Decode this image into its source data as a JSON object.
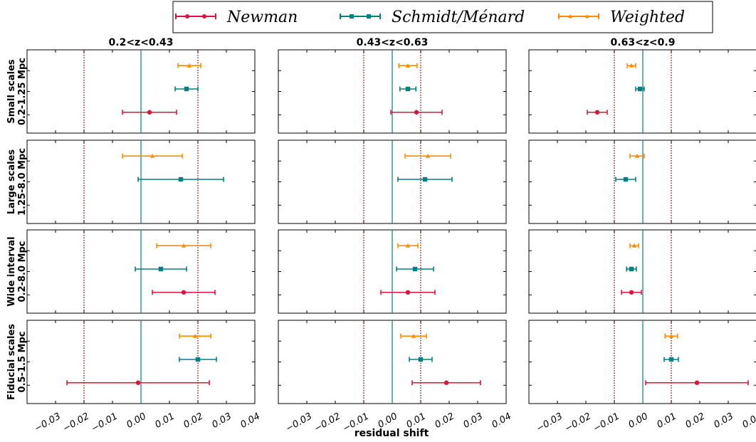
{
  "legend": {
    "entries": [
      {
        "label": "Newman",
        "color": "#dc143c",
        "marker": "circle"
      },
      {
        "label": "Schmidt/Ménard",
        "color": "#008080",
        "marker": "square"
      },
      {
        "label": "Weighted",
        "color": "#ff8c00",
        "marker": "triangle"
      }
    ]
  },
  "xlabel": "residual shift",
  "x_ticks": [
    "−0.03",
    "−0.02",
    "−0.01",
    "0.00",
    "0.01",
    "0.02",
    "0.03",
    "0.04"
  ],
  "chart_data": {
    "type": "scatter",
    "subtype": "errorbar-grid",
    "xlabel": "residual shift",
    "xlim": [
      -0.04,
      0.04
    ],
    "x_tick_values": [
      -0.03,
      -0.02,
      -0.01,
      0.0,
      0.01,
      0.02,
      0.03,
      0.04
    ],
    "columns": [
      {
        "title": "0.2<z<0.43",
        "reference_x": 0.0,
        "dotted_x": [
          -0.02,
          0.02
        ]
      },
      {
        "title": "0.43<z<0.63",
        "reference_x": 0.0,
        "dotted_x": [
          -0.01,
          0.01
        ]
      },
      {
        "title": "0.63<z<0.9",
        "reference_x": 0.0,
        "dotted_x": [
          -0.01,
          0.01
        ]
      }
    ],
    "rows": [
      {
        "label_line1": "Small scales",
        "label_line2": "0.2-1.25 Mpc"
      },
      {
        "label_line1": "Large scales",
        "label_line2": "1.25-8.0 Mpc"
      },
      {
        "label_line1": "Wide interval",
        "label_line2": "0.2-8.0 Mpc"
      },
      {
        "label_line1": "Fiducial scales",
        "label_line2": "0.5-1.5 Mpc"
      }
    ],
    "series_names": [
      "Newman",
      "Schmidt/Ménard",
      "Weighted"
    ],
    "series_colors": [
      "#dc143c",
      "#008080",
      "#ff8c00"
    ],
    "points": [
      [
        [
          [
            0.003,
            0.0095
          ],
          [
            0.016,
            0.004
          ],
          [
            0.017,
            0.004
          ]
        ],
        [
          null,
          [
            0.014,
            0.015
          ],
          [
            0.004,
            0.0105
          ]
        ],
        [
          [
            0.015,
            0.011
          ],
          [
            0.007,
            0.009
          ],
          [
            0.015,
            0.0095
          ]
        ],
        [
          [
            -0.001,
            0.025
          ],
          [
            0.02,
            0.0065
          ],
          [
            0.019,
            0.0055
          ]
        ]
      ],
      [
        [
          [
            0.0085,
            0.009
          ],
          [
            0.0055,
            0.0028
          ],
          [
            0.0055,
            0.0032
          ]
        ],
        [
          null,
          [
            0.0115,
            0.0095
          ],
          [
            0.0125,
            0.008
          ]
        ],
        [
          [
            0.0055,
            0.0095
          ],
          [
            0.008,
            0.0065
          ],
          [
            0.0055,
            0.0035
          ]
        ],
        [
          [
            0.019,
            0.012
          ],
          [
            0.01,
            0.004
          ],
          [
            0.0075,
            0.0045
          ]
        ]
      ],
      [
        [
          [
            -0.016,
            0.0035
          ],
          [
            -0.001,
            0.0015
          ],
          [
            -0.004,
            0.0015
          ]
        ],
        [
          null,
          [
            -0.006,
            0.0035
          ],
          [
            -0.002,
            0.0025
          ]
        ],
        [
          [
            -0.004,
            0.0035
          ],
          [
            -0.004,
            0.0017
          ],
          [
            -0.003,
            0.0015
          ]
        ],
        [
          [
            0.019,
            0.018
          ],
          [
            0.01,
            0.0025
          ],
          [
            0.01,
            0.0022
          ]
        ]
      ]
    ]
  }
}
